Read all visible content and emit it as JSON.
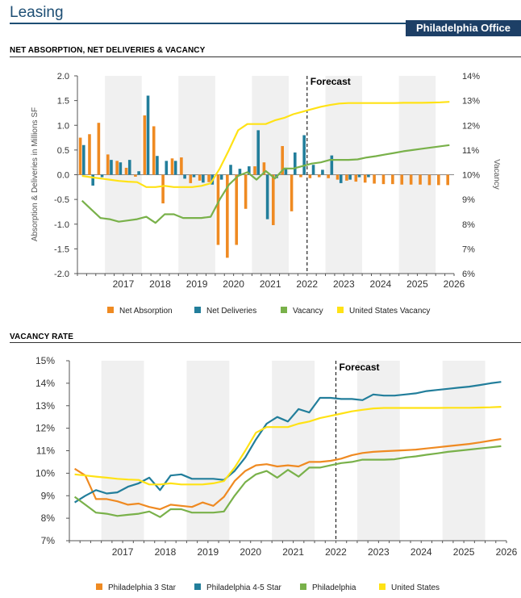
{
  "header": {
    "title": "Leasing",
    "market_tag": "Philadelphia Office"
  },
  "chart_data": [
    {
      "type": "bar",
      "title": "NET ABSORPTION, NET DELIVERIES & VACANCY",
      "ylabel": "Absorption & Deliveries in Millions SF",
      "y2label": "Vacancy",
      "ylim": [
        -2.0,
        2.0
      ],
      "y2lim": [
        6,
        14
      ],
      "yticks": [
        "2.0",
        "1.5",
        "1.0",
        "0.5",
        "0.0",
        "-0.5",
        "-1.0",
        "-1.5",
        "-2.0"
      ],
      "y2ticks": [
        "14%",
        "13%",
        "12%",
        "11%",
        "10%",
        "9%",
        "8%",
        "7%",
        "6%"
      ],
      "year_labels": [
        "2017",
        "2018",
        "2019",
        "2020",
        "2021",
        "2022",
        "2023",
        "2024",
        "2025",
        "2026"
      ],
      "forecast_label": "Forecast",
      "quarters_start": "2016Q2",
      "forecast_start": "2022Q3",
      "series": [
        {
          "name": "Net Absorption",
          "kind": "bar",
          "color": "#ef8a22",
          "values": [
            0.75,
            0.82,
            1.05,
            0.41,
            0.28,
            0.14,
            -0.04,
            1.2,
            0.98,
            -0.58,
            0.33,
            0.35,
            -0.17,
            -0.12,
            -0.15,
            -1.42,
            -1.68,
            -1.42,
            -0.69,
            0.17,
            0.25,
            -1.02,
            0.58,
            -0.74,
            -0.05,
            -0.07,
            -0.05,
            -0.07,
            -0.1,
            -0.12,
            -0.14,
            -0.16,
            -0.18,
            -0.19,
            -0.19,
            -0.2,
            -0.2,
            -0.2,
            -0.21,
            -0.21,
            -0.21
          ]
        },
        {
          "name": "Net Deliveries",
          "kind": "bar",
          "color": "#227e9b",
          "values": [
            0.6,
            -0.22,
            -0.05,
            0.3,
            0.25,
            0.3,
            0.07,
            1.6,
            0.38,
            0.28,
            0.28,
            -0.08,
            -0.05,
            -0.16,
            -0.2,
            -0.1,
            0.2,
            0.12,
            0.17,
            0.9,
            -0.9,
            -0.07,
            0.14,
            0.45,
            0.8,
            0.2,
            0.1,
            0.39,
            -0.17,
            -0.1,
            -0.05,
            -0.05,
            0.0,
            0.0,
            0.0,
            0.0,
            0.0,
            0.0,
            0.0,
            0.0,
            0.0
          ]
        },
        {
          "name": "Vacancy",
          "kind": "line",
          "axis": "right",
          "color": "#79b14a",
          "values": [
            8.95,
            8.6,
            8.25,
            8.2,
            8.1,
            8.15,
            8.2,
            8.3,
            8.05,
            8.4,
            8.4,
            8.25,
            8.25,
            8.25,
            8.3,
            9.0,
            9.6,
            9.95,
            10.1,
            9.8,
            10.15,
            9.85,
            10.25,
            10.25,
            10.35,
            10.45,
            10.5,
            10.6,
            10.6,
            10.6,
            10.62,
            10.7,
            10.75,
            10.82,
            10.88,
            10.95,
            11.0,
            11.05,
            11.1,
            11.15,
            11.2
          ]
        },
        {
          "name": "United States Vacancy",
          "kind": "line",
          "axis": "right",
          "color": "#ffe215",
          "values": [
            9.95,
            9.9,
            9.85,
            9.8,
            9.75,
            9.72,
            9.7,
            9.5,
            9.5,
            9.55,
            9.5,
            9.5,
            9.5,
            9.55,
            9.65,
            10.25,
            11.0,
            11.8,
            12.05,
            12.05,
            12.05,
            12.2,
            12.3,
            12.45,
            12.55,
            12.65,
            12.75,
            12.82,
            12.88,
            12.9,
            12.9,
            12.9,
            12.9,
            12.9,
            12.9,
            12.91,
            12.91,
            12.91,
            12.92,
            12.93,
            12.95
          ]
        }
      ]
    },
    {
      "type": "line",
      "title": "VACANCY RATE",
      "ylim": [
        7,
        15
      ],
      "yticks": [
        "15%",
        "14%",
        "13%",
        "12%",
        "11%",
        "10%",
        "9%",
        "8%",
        "7%"
      ],
      "year_labels": [
        "2017",
        "2018",
        "2019",
        "2020",
        "2021",
        "2022",
        "2023",
        "2024",
        "2025",
        "2026"
      ],
      "forecast_label": "Forecast",
      "quarters_start": "2016Q2",
      "forecast_start": "2022Q3",
      "series": [
        {
          "name": "Philadelphia 3 Star",
          "color": "#ef8a22",
          "values": [
            10.2,
            9.9,
            8.85,
            8.85,
            8.75,
            8.6,
            8.65,
            8.5,
            8.4,
            8.6,
            8.55,
            8.5,
            8.7,
            8.55,
            8.95,
            9.65,
            10.1,
            10.35,
            10.4,
            10.3,
            10.35,
            10.3,
            10.5,
            10.5,
            10.55,
            10.65,
            10.8,
            10.9,
            10.95,
            10.98,
            11.0,
            11.02,
            11.05,
            11.1,
            11.15,
            11.2,
            11.25,
            11.3,
            11.37,
            11.45,
            11.52
          ]
        },
        {
          "name": "Philadelphia 4-5 Star",
          "color": "#227e9b",
          "values": [
            8.7,
            9.0,
            9.25,
            9.1,
            9.15,
            9.4,
            9.55,
            9.8,
            9.25,
            9.9,
            9.95,
            9.75,
            9.75,
            9.75,
            9.7,
            10.1,
            10.7,
            11.5,
            12.2,
            12.5,
            12.3,
            12.85,
            12.7,
            13.35,
            13.35,
            13.3,
            13.3,
            13.25,
            13.5,
            13.45,
            13.45,
            13.5,
            13.55,
            13.65,
            13.7,
            13.75,
            13.8,
            13.85,
            13.92,
            14.0,
            14.06
          ]
        },
        {
          "name": "Philadelphia",
          "color": "#79b14a",
          "values": [
            8.95,
            8.6,
            8.25,
            8.2,
            8.1,
            8.15,
            8.2,
            8.3,
            8.05,
            8.4,
            8.4,
            8.25,
            8.25,
            8.25,
            8.3,
            9.0,
            9.6,
            9.95,
            10.1,
            9.8,
            10.15,
            9.85,
            10.25,
            10.25,
            10.35,
            10.45,
            10.5,
            10.6,
            10.6,
            10.6,
            10.62,
            10.7,
            10.75,
            10.82,
            10.88,
            10.95,
            11.0,
            11.05,
            11.1,
            11.15,
            11.2
          ]
        },
        {
          "name": "United States",
          "color": "#ffe215",
          "values": [
            9.95,
            9.9,
            9.85,
            9.8,
            9.75,
            9.72,
            9.7,
            9.5,
            9.5,
            9.55,
            9.5,
            9.5,
            9.5,
            9.55,
            9.65,
            10.25,
            11.0,
            11.8,
            12.05,
            12.05,
            12.05,
            12.2,
            12.3,
            12.45,
            12.55,
            12.65,
            12.75,
            12.82,
            12.88,
            12.9,
            12.9,
            12.9,
            12.9,
            12.9,
            12.9,
            12.91,
            12.91,
            12.91,
            12.92,
            12.93,
            12.95
          ]
        }
      ]
    }
  ]
}
